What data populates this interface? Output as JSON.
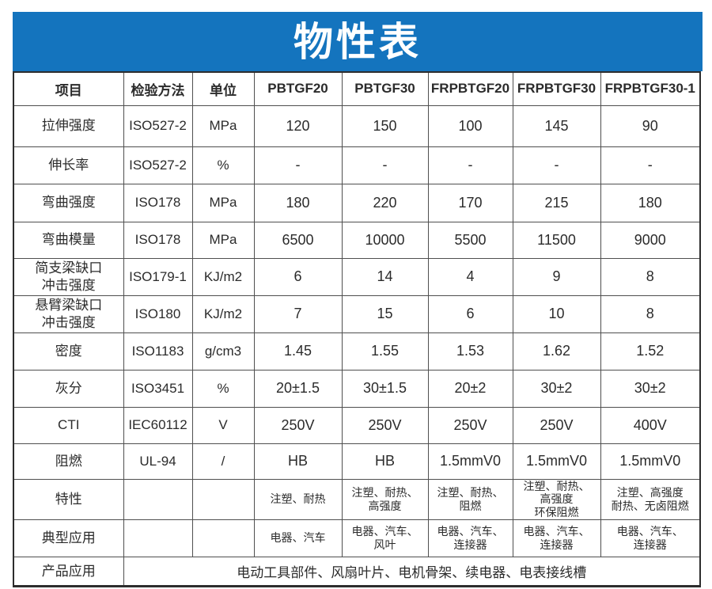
{
  "title": "物性表",
  "colors": {
    "banner_blue": "#1474be",
    "banner_text": "#ffffff",
    "body_text": "#2b2b2b",
    "grid_line": "#4f4f4f",
    "outer_border": "#2d2d2d"
  },
  "table": {
    "columns": [
      "项目",
      "检验方法",
      "单位",
      "PBTGF20",
      "PBTGF30",
      "FRPBTGF20",
      "FRPBTGF30",
      "FRPBTGF30-1"
    ],
    "rows": [
      {
        "item": "拉伸强度",
        "method": "ISO527-2",
        "unit": "MPa",
        "small": false,
        "values": [
          "120",
          "150",
          "100",
          "145",
          "90"
        ]
      },
      {
        "item": "伸长率",
        "method": "ISO527-2",
        "unit": "%",
        "small": false,
        "values": [
          "-",
          "-",
          "-",
          "-",
          "-"
        ]
      },
      {
        "item": "弯曲强度",
        "method": "ISO178",
        "unit": "MPa",
        "small": false,
        "values": [
          "180",
          "220",
          "170",
          "215",
          "180"
        ]
      },
      {
        "item": "弯曲模量",
        "method": "ISO178",
        "unit": "MPa",
        "small": false,
        "values": [
          "6500",
          "10000",
          "5500",
          "11500",
          "9000"
        ]
      },
      {
        "item": "简支梁缺口\n冲击强度",
        "method": "ISO179-1",
        "unit": "KJ/m2",
        "small": false,
        "values": [
          "6",
          "14",
          "4",
          "9",
          "8"
        ]
      },
      {
        "item": "悬臂梁缺口\n冲击强度",
        "method": "ISO180",
        "unit": "KJ/m2",
        "small": false,
        "values": [
          "7",
          "15",
          "6",
          "10",
          "8"
        ]
      },
      {
        "item": "密度",
        "method": "ISO1183",
        "unit": "g/cm3",
        "small": false,
        "values": [
          "1.45",
          "1.55",
          "1.53",
          "1.62",
          "1.52"
        ]
      },
      {
        "item": "灰分",
        "method": "ISO3451",
        "unit": "%",
        "small": false,
        "values": [
          "20±1.5",
          "30±1.5",
          "20±2",
          "30±2",
          "30±2"
        ]
      },
      {
        "item": "CTI",
        "method": "IEC60112",
        "unit": "V",
        "small": false,
        "values": [
          "250V",
          "250V",
          "250V",
          "250V",
          "400V"
        ]
      },
      {
        "item": "阻燃",
        "method": "UL-94",
        "unit": "/",
        "small": false,
        "values": [
          "HB",
          "HB",
          "1.5mmV0",
          "1.5mmV0",
          "1.5mmV0"
        ]
      },
      {
        "item": "特性",
        "method": "",
        "unit": "",
        "small": true,
        "values": [
          "注塑、耐热",
          "注塑、耐热、\n高强度",
          "注塑、耐热、\n阻燃",
          "注塑、耐热、\n高强度\n环保阻燃",
          "注塑、高强度\n耐热、无卤阻燃"
        ]
      },
      {
        "item": "典型应用",
        "method": "",
        "unit": "",
        "small": true,
        "values": [
          "电器、汽车",
          "电器、汽车、\n风叶",
          "电器、汽车、\n连接器",
          "电器、汽车、\n连接器",
          "电器、汽车、\n连接器"
        ]
      }
    ],
    "footer": {
      "label": "产品应用",
      "value": "电动工具部件、风扇叶片、电机骨架、续电器、电表接线槽"
    }
  }
}
